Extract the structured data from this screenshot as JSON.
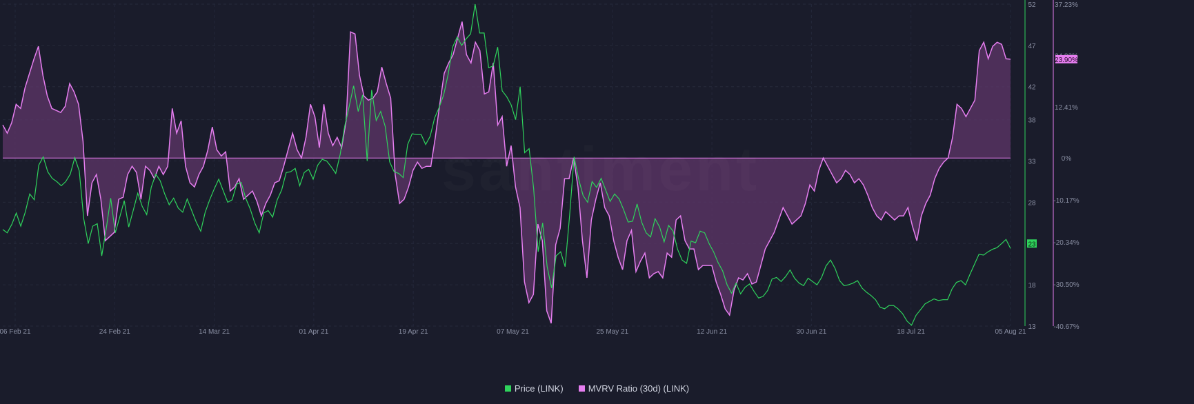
{
  "chart_data": {
    "type": "line",
    "watermark": "santiment",
    "x_ticks": [
      "06 Feb 21",
      "24 Feb 21",
      "14 Mar 21",
      "01 Apr 21",
      "19 Apr 21",
      "07 May 21",
      "25 May 21",
      "12 Jun 21",
      "30 Jun 21",
      "18 Jul 21",
      "05 Aug 21"
    ],
    "price_axis": {
      "ticks": [
        52,
        47,
        42,
        38,
        33,
        28,
        23,
        18,
        13
      ],
      "range": [
        13,
        52
      ]
    },
    "mvrv_axis": {
      "ticks": [
        "37.23%",
        "24.82%",
        "12.41%",
        "0%",
        "-10.17%",
        "-20.34%",
        "-30.50%",
        "-40.67%"
      ],
      "range": [
        -40.67,
        37.23
      ]
    },
    "price_badge": "23",
    "mvrv_badge": "23.90%",
    "colors": {
      "price": "#2fd35c",
      "mvrv": "#e67ef0",
      "fill": "#5a3565",
      "background": "#1a1c2b"
    },
    "series": [
      {
        "name": "Price (LINK)",
        "axis": "left",
        "values": [
          24.7,
          24.3,
          25.3,
          26.7,
          25.1,
          26.8,
          29.0,
          28.3,
          32.5,
          33.5,
          31.7,
          30.9,
          30.5,
          30.0,
          30.5,
          31.4,
          33.4,
          31.8,
          26.0,
          23.0,
          25.1,
          25.4,
          21.5,
          24.8,
          28.5,
          24.3,
          26.2,
          28.2,
          25.0,
          27.0,
          29.1,
          27.5,
          26.5,
          29.8,
          31.4,
          30.6,
          29.0,
          27.7,
          28.5,
          27.3,
          26.8,
          28.4,
          27.0,
          25.6,
          24.5,
          26.8,
          28.3,
          29.6,
          30.8,
          29.4,
          28.0,
          28.3,
          30.2,
          30.4,
          28.5,
          27.2,
          25.5,
          24.3,
          26.7,
          27.0,
          26.2,
          28.3,
          29.5,
          31.6,
          31.7,
          32.1,
          30.0,
          31.6,
          32.0,
          30.8,
          32.5,
          33.2,
          33.0,
          32.3,
          31.5,
          33.8,
          37.2,
          39.6,
          42.1,
          39.0,
          41.0,
          33.0,
          41.6,
          37.9,
          39.0,
          37.2,
          32.9,
          31.7,
          31.5,
          31.0,
          35.0,
          36.3,
          36.2,
          36.2,
          35.0,
          36.0,
          38.2,
          39.5,
          41.0,
          43.5,
          46.8,
          48.0,
          47.0,
          47.8,
          48.4,
          52.0,
          48.5,
          48.5,
          44.3,
          44.5,
          46.8,
          41.5,
          40.8,
          39.8,
          38.0,
          42.0,
          34.0,
          34.5,
          29.7,
          22.0,
          25.5,
          20.2,
          17.6,
          21.5,
          22.0,
          20.2,
          26.4,
          33.5,
          30.8,
          28.8,
          28.0,
          30.5,
          29.8,
          30.9,
          29.5,
          28.1,
          29.0,
          28.4,
          27.1,
          25.6,
          25.7,
          27.8,
          25.6,
          24.3,
          23.8,
          26.0,
          25.0,
          23.2,
          25.2,
          24.5,
          22.3,
          21.0,
          20.6,
          23.3,
          23.1,
          24.5,
          24.3,
          23.0,
          22.0,
          20.7,
          19.7,
          18.0,
          17.0,
          18.2,
          16.9,
          17.7,
          18.1,
          17.2,
          16.4,
          16.6,
          17.3,
          18.7,
          18.9,
          18.4,
          19.0,
          19.8,
          18.8,
          18.2,
          17.9,
          18.8,
          18.4,
          18.0,
          18.9,
          20.3,
          21.0,
          20.0,
          18.5,
          17.9,
          18.0,
          18.2,
          18.5,
          17.6,
          17.1,
          16.7,
          16.2,
          15.3,
          15.1,
          15.5,
          15.5,
          15.1,
          14.5,
          13.6,
          13.1,
          14.3,
          15.0,
          15.7,
          16.0,
          16.3,
          16.1,
          16.2,
          16.2,
          17.5,
          18.3,
          18.5,
          18.0,
          19.3,
          20.5,
          21.7,
          21.6,
          22.0,
          22.3,
          22.5,
          23.0,
          23.5,
          22.4
        ],
        "values_axis_unit": "USD"
      },
      {
        "name": "MVRV Ratio (30d) (LINK)",
        "axis": "right",
        "values": [
          8.0,
          6.0,
          8.5,
          13.0,
          12.0,
          17.0,
          20.5,
          24.0,
          27.0,
          20.0,
          15.0,
          12.0,
          11.5,
          11.0,
          12.5,
          18.0,
          16.0,
          13.0,
          4.0,
          -14.0,
          -6.0,
          -4.0,
          -10.0,
          -20.0,
          -19.0,
          -18.0,
          -10.0,
          -9.5,
          -4.0,
          -2.0,
          -3.5,
          -10.0,
          -2.0,
          -3.0,
          -5.0,
          -2.0,
          -4.0,
          -2.0,
          12.0,
          6.0,
          9.0,
          -2.0,
          -6.0,
          -7.0,
          -4.0,
          -2.0,
          2.0,
          7.5,
          2.0,
          0.5,
          1.5,
          -8.0,
          -7.0,
          -5.0,
          -10.0,
          -9.0,
          -8.0,
          -10.5,
          -14.0,
          -11.0,
          -9.0,
          -6.0,
          -5.5,
          -2.0,
          2.0,
          6.0,
          2.0,
          0.0,
          5.0,
          13.0,
          10.0,
          2.5,
          13.0,
          6.0,
          3.0,
          5.0,
          2.5,
          9.0,
          30.5,
          30.0,
          20.0,
          15.0,
          14.0,
          14.5,
          16.0,
          22.0,
          18.0,
          14.5,
          -4.0,
          -11.0,
          -10.0,
          -7.0,
          -3.0,
          -1.0,
          -2.5,
          -2.0,
          -2.0,
          5.0,
          13.0,
          20.5,
          23.0,
          25.0,
          29.0,
          33.0,
          25.0,
          23.0,
          28.0,
          26.0,
          15.5,
          16.0,
          23.0,
          8.0,
          10.0,
          -2.0,
          3.0,
          -7.0,
          -12.0,
          -30.0,
          -35.0,
          -33.0,
          -16.0,
          -20.0,
          -37.0,
          -40.0,
          -21.0,
          -17.0,
          -5.0,
          -5.0,
          0.0,
          -7.0,
          -20.0,
          -29.0,
          -15.0,
          -10.0,
          -6.0,
          -12.0,
          -14.0,
          -20.0,
          -24.0,
          -27.0,
          -20.0,
          -17.5,
          -27.5,
          -25.0,
          -23.0,
          -29.0,
          -28.0,
          -27.5,
          -29.0,
          -23.0,
          -24.0,
          -15.0,
          -14.0,
          -20.0,
          -22.0,
          -22.0,
          -27.0,
          -26.0,
          -26.0,
          -26.0,
          -30.0,
          -33.0,
          -36.5,
          -38.0,
          -32.0,
          -29.0,
          -29.5,
          -28.0,
          -30.5,
          -30.0,
          -26.0,
          -22.0,
          -20.0,
          -18.0,
          -15.0,
          -12.0,
          -14.0,
          -16.0,
          -15.0,
          -14.0,
          -11.0,
          -6.5,
          -8.0,
          -3.0,
          0.0,
          -2.0,
          -4.0,
          -6.0,
          -5.0,
          -3.0,
          -4.0,
          -6.0,
          -5.0,
          -6.5,
          -9.0,
          -12.0,
          -14.0,
          -15.0,
          -13.0,
          -14.0,
          -15.0,
          -14.0,
          -14.0,
          -12.0,
          -16.5,
          -20.0,
          -14.0,
          -11.0,
          -9.0,
          -5.0,
          -2.5,
          -1.0,
          0.0,
          5.0,
          13.0,
          12.0,
          10.0,
          12.0,
          14.0,
          26.0,
          28.0,
          24.0,
          27.0,
          28.0,
          27.5,
          24.0,
          23.9
        ]
      }
    ],
    "legend": [
      "Price (LINK)",
      "MVRV Ratio (30d) (LINK)"
    ]
  }
}
